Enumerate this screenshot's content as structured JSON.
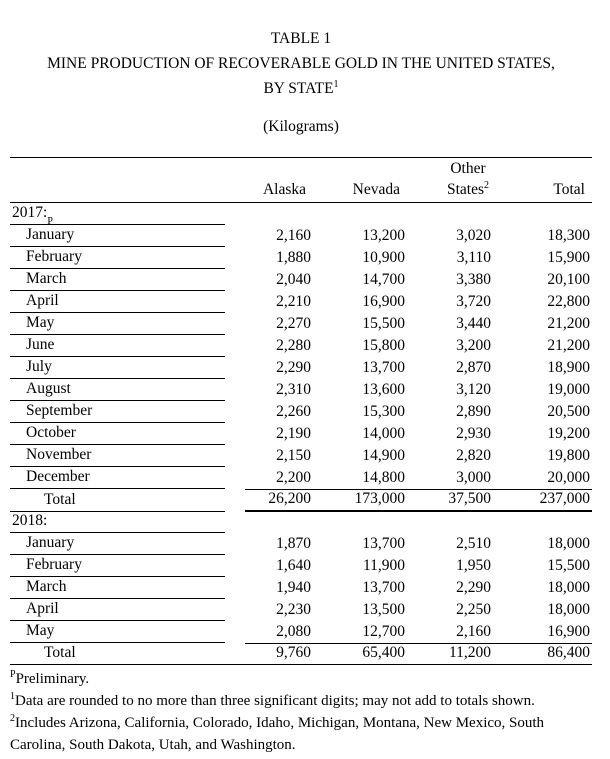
{
  "title": {
    "table_number": "TABLE 1",
    "heading_line1": "MINE PRODUCTION OF RECOVERABLE GOLD IN THE UNITED STATES,",
    "heading_line2": "BY STATE",
    "heading_footnote_marker": "1",
    "units": "(Kilograms)"
  },
  "table": {
    "columns": {
      "alaska": "Alaska",
      "nevada": "Nevada",
      "other_states_line1": "Other",
      "other_states_line2": "States",
      "other_states_footnote_marker": "2",
      "total": "Total"
    },
    "sections": [
      {
        "year_label": "2017:",
        "year_footnote_marker": "P",
        "rows": [
          {
            "label": "January",
            "alaska": "2,160",
            "nevada": "13,200",
            "other_states": "3,020",
            "total": "18,300"
          },
          {
            "label": "February",
            "alaska": "1,880",
            "nevada": "10,900",
            "other_states": "3,110",
            "total": "15,900"
          },
          {
            "label": "March",
            "alaska": "2,040",
            "nevada": "14,700",
            "other_states": "3,380",
            "total": "20,100"
          },
          {
            "label": "April",
            "alaska": "2,210",
            "nevada": "16,900",
            "other_states": "3,720",
            "total": "22,800"
          },
          {
            "label": "May",
            "alaska": "2,270",
            "nevada": "15,500",
            "other_states": "3,440",
            "total": "21,200"
          },
          {
            "label": "June",
            "alaska": "2,280",
            "nevada": "15,800",
            "other_states": "3,200",
            "total": "21,200"
          },
          {
            "label": "July",
            "alaska": "2,290",
            "nevada": "13,700",
            "other_states": "2,870",
            "total": "18,900"
          },
          {
            "label": "August",
            "alaska": "2,310",
            "nevada": "13,600",
            "other_states": "3,120",
            "total": "19,000"
          },
          {
            "label": "September",
            "alaska": "2,260",
            "nevada": "15,300",
            "other_states": "2,890",
            "total": "20,500"
          },
          {
            "label": "October",
            "alaska": "2,190",
            "nevada": "14,000",
            "other_states": "2,930",
            "total": "19,200"
          },
          {
            "label": "November",
            "alaska": "2,150",
            "nevada": "14,900",
            "other_states": "2,820",
            "total": "19,800"
          },
          {
            "label": "December",
            "alaska": "2,200",
            "nevada": "14,800",
            "other_states": "3,000",
            "total": "20,000"
          }
        ],
        "total_row": {
          "label": "Total",
          "alaska": "26,200",
          "nevada": "173,000",
          "other_states": "37,500",
          "total": "237,000"
        }
      },
      {
        "year_label": "2018:",
        "year_footnote_marker": "",
        "rows": [
          {
            "label": "January",
            "alaska": "1,870",
            "nevada": "13,700",
            "other_states": "2,510",
            "total": "18,000"
          },
          {
            "label": "February",
            "alaska": "1,640",
            "nevada": "11,900",
            "other_states": "1,950",
            "total": "15,500"
          },
          {
            "label": "March",
            "alaska": "1,940",
            "nevada": "13,700",
            "other_states": "2,290",
            "total": "18,000"
          },
          {
            "label": "April",
            "alaska": "2,230",
            "nevada": "13,500",
            "other_states": "2,250",
            "total": "18,000"
          },
          {
            "label": "May",
            "alaska": "2,080",
            "nevada": "12,700",
            "other_states": "2,160",
            "total": "16,900"
          }
        ],
        "total_row": {
          "label": "Total",
          "alaska": "9,760",
          "nevada": "65,400",
          "other_states": "11,200",
          "total": "86,400"
        }
      }
    ]
  },
  "footnotes": [
    {
      "marker": "P",
      "text": "Preliminary."
    },
    {
      "marker": "1",
      "text": "Data are rounded to no more than three significant digits; may not add to totals shown."
    },
    {
      "marker": "2",
      "text": "Includes Arizona, California, Colorado, Idaho, Michigan, Montana, New Mexico, South Carolina, South Dakota, Utah, and Washington."
    }
  ]
}
